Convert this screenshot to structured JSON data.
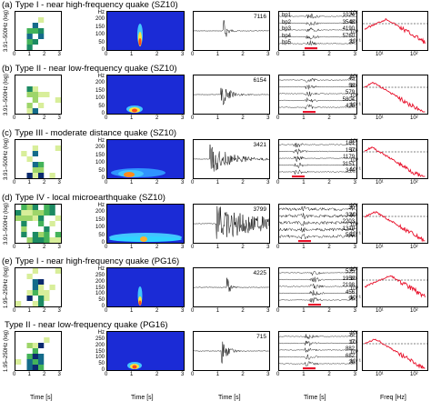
{
  "rows": [
    {
      "label": "(a)",
      "title": "Type I - near high-frequency quake (SZ10)",
      "ylabel": "3.91–500Hz (log)",
      "amp": "7116",
      "bp": [
        "1024",
        "3548",
        "4190",
        "5760",
        "22"
      ],
      "bpnames": [
        "bp1",
        "bp2",
        "bp3",
        "bp4",
        "bp5"
      ]
    },
    {
      "label": "(b)",
      "title": "Type II - near low-frequency quake (SZ10)",
      "ylabel": "3.91–500Hz (log)",
      "amp": "6154",
      "bp": [
        "43",
        "59",
        "579",
        "5804",
        "429"
      ],
      "bpnames": []
    },
    {
      "label": "(c)",
      "title": "Type III - moderate distance quake (SZ10)",
      "ylabel": "3.91–500Hz (log)",
      "amp": "3421",
      "bp": [
        "161",
        "157",
        "1179",
        "3151",
        "344"
      ],
      "bpnames": []
    },
    {
      "label": "(d)",
      "title": "Type IV - local microearthquake (SZ10)",
      "ylabel": "3.91–500Hz (log)",
      "amp": "3799",
      "bp": [
        "30",
        "324",
        "2203",
        "1319",
        "562"
      ],
      "bpnames": []
    },
    {
      "label": "(e)",
      "title": "Type I - near high-frequency quake (PG16)",
      "ylabel": "1.95–250Hz (log)",
      "amp": "4225",
      "bp": [
        "535",
        "1959",
        "2198",
        "456",
        "96"
      ],
      "bpnames": []
    },
    {
      "label": "",
      "title": "Type II - near low-frequency quake (PG16)",
      "ylabel": "1.95–250Hz (log)",
      "amp": "715",
      "bp": [
        "12",
        "17",
        "882",
        "682",
        "29"
      ],
      "bpnames": []
    }
  ],
  "hz_unit": "Hz",
  "hz_ticks_sz": [
    "200",
    "150",
    "100",
    "50",
    "0"
  ],
  "hz_ticks_pg": [
    "250",
    "200",
    "150",
    "100",
    "50",
    "0"
  ],
  "psd_ticks": [
    "10²",
    "10¹",
    "10⁰",
    "10⁻¹"
  ],
  "time_ticks": [
    "0",
    "1",
    "2",
    "3"
  ],
  "time_label": "Time [s]",
  "freq_ticks": [
    "10¹",
    "10²"
  ],
  "freq_label": "Freq [Hz]",
  "colors": {
    "spec_bg": "#1b2bd6",
    "psd": "#e8102a",
    "bar": "#e8102a"
  }
}
